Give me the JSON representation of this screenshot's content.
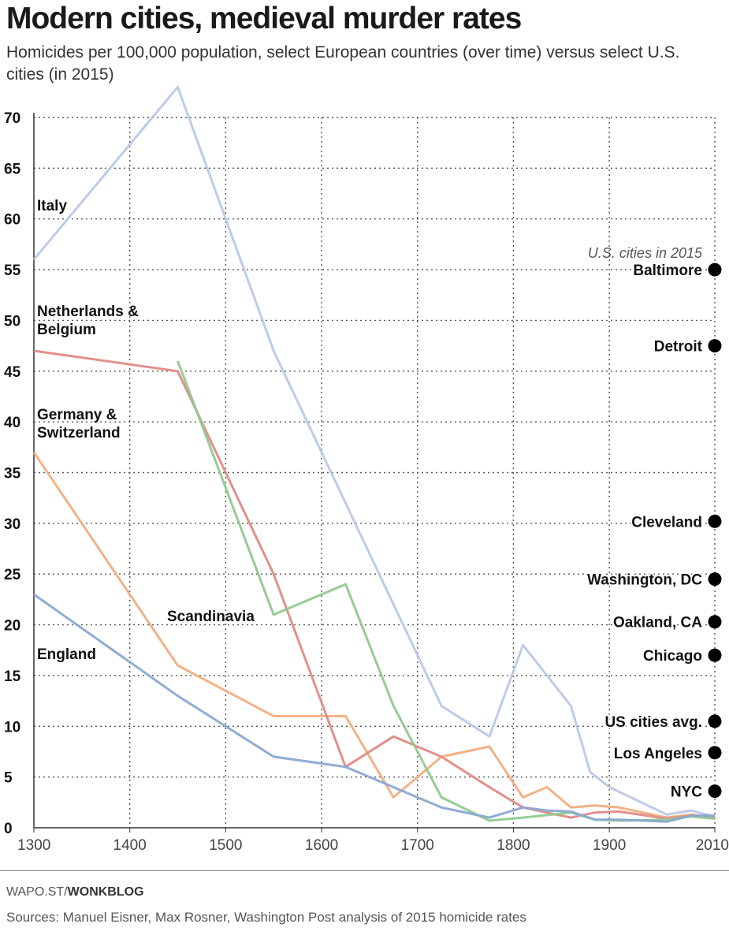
{
  "chart_data": {
    "type": "line",
    "title": "Modern cities, medieval murder rates",
    "subtitle": "Homicides per 100,000 population, select European countries (over time) versus select U.S. cities (in 2015)",
    "xlabel": "",
    "ylabel": "",
    "xlim": [
      1300,
      2010
    ],
    "ylim": [
      0,
      70
    ],
    "x_ticks": [
      "1300",
      "1400",
      "1500",
      "1600",
      "1700",
      "1800",
      "1900",
      "2010"
    ],
    "y_ticks": [
      "0",
      "5",
      "10",
      "15",
      "20",
      "25",
      "30",
      "35",
      "40",
      "45",
      "50",
      "55",
      "60",
      "65",
      "70"
    ],
    "grid": true,
    "series": [
      {
        "name": "Italy",
        "color": "#b8c9e6",
        "points": [
          [
            1300,
            56
          ],
          [
            1450,
            73
          ],
          [
            1550,
            47
          ],
          [
            1625,
            32
          ],
          [
            1725,
            12
          ],
          [
            1775,
            9
          ],
          [
            1810,
            18
          ],
          [
            1860,
            12
          ],
          [
            1880,
            5.5
          ],
          [
            1900,
            4
          ],
          [
            1960,
            1.3
          ],
          [
            1985,
            1.7
          ],
          [
            2010,
            1.1
          ]
        ]
      },
      {
        "name": "Netherlands & Belgium",
        "color": "#e08a86",
        "points": [
          [
            1300,
            47
          ],
          [
            1450,
            45
          ],
          [
            1550,
            25
          ],
          [
            1625,
            6
          ],
          [
            1675,
            9
          ],
          [
            1725,
            7
          ],
          [
            1775,
            4
          ],
          [
            1810,
            2
          ],
          [
            1860,
            1
          ],
          [
            1885,
            1.5
          ],
          [
            1910,
            1.6
          ],
          [
            1960,
            0.9
          ],
          [
            1985,
            1.2
          ],
          [
            2010,
            1
          ]
        ]
      },
      {
        "name": "Germany & Switzerland",
        "color": "#f2ae80",
        "points": [
          [
            1300,
            37
          ],
          [
            1450,
            16
          ],
          [
            1550,
            11
          ],
          [
            1625,
            11
          ],
          [
            1675,
            3
          ],
          [
            1725,
            7
          ],
          [
            1775,
            8
          ],
          [
            1810,
            3
          ],
          [
            1835,
            4
          ],
          [
            1860,
            2
          ],
          [
            1885,
            2.2
          ],
          [
            1910,
            2
          ],
          [
            1960,
            1
          ],
          [
            1985,
            1.3
          ],
          [
            2010,
            1
          ]
        ]
      },
      {
        "name": "Scandinavia",
        "color": "#8fc98e",
        "points": [
          [
            1450,
            46
          ],
          [
            1550,
            21
          ],
          [
            1625,
            24
          ],
          [
            1675,
            12
          ],
          [
            1725,
            3
          ],
          [
            1775,
            0.7
          ],
          [
            1810,
            1
          ],
          [
            1860,
            1.5
          ],
          [
            1885,
            0.8
          ],
          [
            1910,
            0.7
          ],
          [
            1960,
            0.8
          ],
          [
            1985,
            1.1
          ],
          [
            2010,
            0.9
          ]
        ]
      },
      {
        "name": "England",
        "color": "#8aa8d2",
        "points": [
          [
            1300,
            23
          ],
          [
            1450,
            13
          ],
          [
            1550,
            7
          ],
          [
            1625,
            6
          ],
          [
            1725,
            2
          ],
          [
            1775,
            1
          ],
          [
            1810,
            2
          ],
          [
            1835,
            1.7
          ],
          [
            1860,
            1.6
          ],
          [
            1885,
            0.8
          ],
          [
            1910,
            0.8
          ],
          [
            1960,
            0.6
          ],
          [
            1985,
            1.2
          ],
          [
            2010,
            1.2
          ]
        ]
      }
    ],
    "series_label_positions": [
      {
        "name": "Italy",
        "lines": [
          "Italy"
        ]
      },
      {
        "name": "Netherlands & Belgium",
        "lines": [
          "Netherlands &",
          "Belgium"
        ]
      },
      {
        "name": "Germany & Switzerland",
        "lines": [
          "Germany &",
          "Switzerland"
        ]
      },
      {
        "name": "Scandinavia",
        "lines": [
          "Scandinavia"
        ]
      },
      {
        "name": "England",
        "lines": [
          "England"
        ]
      }
    ],
    "us_cities_title": "U.S. cities in 2015",
    "us_cities": [
      {
        "name": "Baltimore",
        "value": 55
      },
      {
        "name": "Detroit",
        "value": 47.5
      },
      {
        "name": "Cleveland",
        "value": 30.2
      },
      {
        "name": "Washington, DC",
        "value": 24.5
      },
      {
        "name": "Oakland, CA",
        "value": 20.3
      },
      {
        "name": "Chicago",
        "value": 17
      },
      {
        "name": "US cities avg.",
        "value": 10.5
      },
      {
        "name": "Los Angeles",
        "value": 7.4
      },
      {
        "name": "NYC",
        "value": 3.6
      }
    ]
  },
  "footer": {
    "credit_prefix": "WAPO.ST/",
    "credit_bold": "WONKBLOG",
    "source": "Sources: Manuel Eisner, Max Rosner, Washington Post analysis of 2015 homicide rates"
  }
}
